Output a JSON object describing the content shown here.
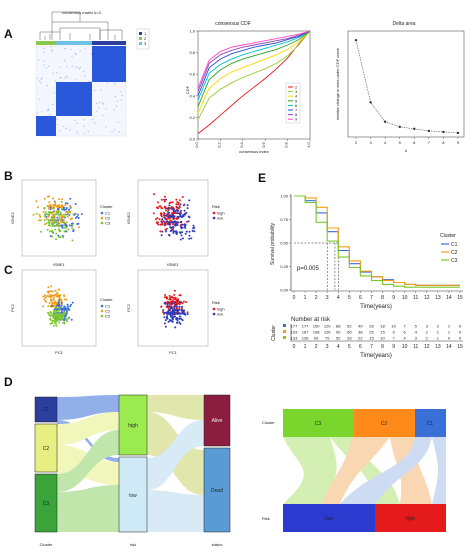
{
  "panels": {
    "a": "A",
    "b": "B",
    "c": "C",
    "d": "D",
    "e": "E"
  },
  "heatmap": {
    "title": "consensus matrix k=3",
    "legend": [
      "1",
      "2",
      "3"
    ],
    "colors": {
      "1": "#2c3e9e",
      "2": "#8ac74a",
      "3": "#6ec1e4",
      "block": "#1f4fd8"
    }
  },
  "cdf": {
    "title": "consensus CDF",
    "xlabel": "consensus index",
    "ylabel": "CDF",
    "x_ticks": [
      "0.0",
      "0.2",
      "0.4",
      "0.6",
      "0.8",
      "1.0"
    ],
    "y_ticks": [
      "0.0",
      "0.2",
      "0.4",
      "0.6",
      "0.8",
      "1.0"
    ],
    "legend": [
      "2",
      "3",
      "4",
      "5",
      "6",
      "7",
      "8",
      "9"
    ],
    "colors": [
      "#e41a1c",
      "#9acd32",
      "#ffd700",
      "#2ca02c",
      "#00bcd4",
      "#1f4fd8",
      "#8e44ad",
      "#ff44cc"
    ]
  },
  "delta": {
    "title": "Delta area",
    "xlabel": "k",
    "ylabel": "relative change in area under CDF curve",
    "x_ticks": [
      "2",
      "3",
      "4",
      "5",
      "6",
      "7",
      "8",
      "9"
    ],
    "y_ticks": [
      "0.0",
      "0.2",
      "0.4",
      "0.6",
      "0.8",
      "1.0"
    ]
  },
  "scatter_b1": {
    "xlabel": "tSNE1",
    "ylabel": "tSNE2",
    "legend_title": "Cluster",
    "legend": [
      "C1",
      "C2",
      "C3"
    ]
  },
  "scatter_b2": {
    "xlabel": "tSNE1",
    "ylabel": "tSNE2",
    "legend_title": "Risk",
    "legend": [
      "high",
      "low"
    ]
  },
  "scatter_c1": {
    "xlabel": "PC1",
    "ylabel": "PC2",
    "legend_title": "Cluster",
    "legend": [
      "C1",
      "C2",
      "C3"
    ]
  },
  "scatter_c2": {
    "xlabel": "PC1",
    "ylabel": "PC2",
    "legend_title": "Risk",
    "legend": [
      "high",
      "low"
    ]
  },
  "colors": {
    "c1": "#3b6fd8",
    "c2": "#f39c12",
    "c3": "#7cc82b",
    "high": "#e31a1c",
    "low": "#2b3bbd"
  },
  "km": {
    "legend_title": "Cluster",
    "legend": [
      "C1",
      "C2",
      "C3"
    ],
    "ylabel": "Survival probability",
    "xlabel": "Time(years)",
    "pvalue": "p=0.005",
    "x_ticks": [
      "0",
      "1",
      "2",
      "3",
      "4",
      "5",
      "6",
      "7",
      "8",
      "9",
      "10",
      "11",
      "12",
      "13",
      "14",
      "15"
    ],
    "y_ticks": [
      "0.00",
      "0.25",
      "0.50",
      "0.75",
      "1.00"
    ],
    "risk_title": "Number at risk",
    "risk_ylabel": "Cluster",
    "risk_rows": [
      [
        "177",
        "177",
        "150",
        "120",
        "88",
        "62",
        "40",
        "28",
        "18",
        "10",
        "7",
        "5",
        "3",
        "2",
        "1",
        "0"
      ],
      [
        "193",
        "187",
        "158",
        "126",
        "90",
        "60",
        "38",
        "25",
        "15",
        "9",
        "6",
        "4",
        "2",
        "1",
        "1",
        "0"
      ],
      [
        "133",
        "126",
        "99",
        "75",
        "52",
        "33",
        "22",
        "15",
        "10",
        "7",
        "4",
        "3",
        "2",
        "1",
        "0",
        "0"
      ]
    ]
  },
  "sankey1": {
    "axis_labels": [
      "Cluster",
      "risk",
      "status"
    ],
    "nodes": [
      "C1",
      "C2",
      "C3",
      "high",
      "low",
      "Alive",
      "Dead"
    ]
  },
  "sankey2": {
    "axis_labels": [
      "Cluster",
      "Risk"
    ],
    "nodes": [
      "C3",
      "C2",
      "C1",
      "low",
      "high"
    ]
  },
  "chart_data": [
    {
      "type": "heatmap",
      "title": "consensus matrix k=3",
      "clusters": [
        "1",
        "2",
        "3"
      ]
    },
    {
      "type": "line",
      "title": "consensus CDF",
      "xlabel": "consensus index",
      "ylabel": "CDF",
      "xlim": [
        0,
        1
      ],
      "ylim": [
        0,
        1
      ],
      "x": [
        0,
        0.1,
        0.2,
        0.3,
        0.4,
        0.5,
        0.6,
        0.7,
        0.8,
        0.9,
        1.0
      ],
      "series": [
        {
          "name": "2",
          "values": [
            0.05,
            0.13,
            0.22,
            0.31,
            0.4,
            0.48,
            0.56,
            0.65,
            0.75,
            0.88,
            1.0
          ]
        },
        {
          "name": "3",
          "values": [
            0.18,
            0.38,
            0.46,
            0.52,
            0.57,
            0.61,
            0.65,
            0.7,
            0.77,
            0.87,
            1.0
          ]
        },
        {
          "name": "4",
          "values": [
            0.24,
            0.47,
            0.56,
            0.62,
            0.66,
            0.7,
            0.74,
            0.78,
            0.83,
            0.9,
            1.0
          ]
        },
        {
          "name": "5",
          "values": [
            0.3,
            0.55,
            0.64,
            0.7,
            0.74,
            0.77,
            0.8,
            0.83,
            0.87,
            0.92,
            1.0
          ]
        },
        {
          "name": "6",
          "values": [
            0.36,
            0.61,
            0.69,
            0.74,
            0.78,
            0.81,
            0.84,
            0.87,
            0.9,
            0.94,
            1.0
          ]
        },
        {
          "name": "7",
          "values": [
            0.4,
            0.66,
            0.74,
            0.79,
            0.82,
            0.85,
            0.87,
            0.89,
            0.92,
            0.95,
            1.0
          ]
        },
        {
          "name": "8",
          "values": [
            0.44,
            0.7,
            0.78,
            0.82,
            0.85,
            0.87,
            0.89,
            0.91,
            0.93,
            0.96,
            1.0
          ]
        },
        {
          "name": "9",
          "values": [
            0.47,
            0.73,
            0.81,
            0.85,
            0.87,
            0.89,
            0.91,
            0.93,
            0.95,
            0.97,
            1.0
          ]
        }
      ]
    },
    {
      "type": "line",
      "title": "Delta area",
      "xlabel": "k",
      "ylabel": "relative change in area under CDF curve",
      "x": [
        2,
        3,
        4,
        5,
        6,
        7,
        8,
        9
      ],
      "values": [
        0.93,
        0.32,
        0.13,
        0.08,
        0.06,
        0.04,
        0.03,
        0.02
      ],
      "ylim": [
        0,
        1
      ]
    },
    {
      "type": "line",
      "title": "",
      "xlabel": "Time(years)",
      "ylabel": "Survival probability",
      "xlim": [
        0,
        15
      ],
      "ylim": [
        0,
        1
      ],
      "series": [
        {
          "name": "C1",
          "x": [
            0,
            1,
            2,
            3,
            4,
            5,
            6,
            7,
            8,
            9,
            10,
            11,
            12,
            13,
            14,
            15
          ],
          "values": [
            1.0,
            0.95,
            0.82,
            0.62,
            0.42,
            0.28,
            0.19,
            0.14,
            0.11,
            0.08,
            0.06,
            0.05,
            0.05,
            0.05,
            0.05,
            0.05
          ]
        },
        {
          "name": "C2",
          "x": [
            0,
            1,
            2,
            3,
            4,
            5,
            6,
            7,
            8,
            9,
            10,
            11,
            12,
            13,
            14,
            15
          ],
          "values": [
            1.0,
            0.98,
            0.88,
            0.66,
            0.46,
            0.31,
            0.2,
            0.14,
            0.1,
            0.08,
            0.06,
            0.05,
            0.05,
            0.05,
            0.05,
            0.05
          ]
        },
        {
          "name": "C3",
          "x": [
            0,
            1,
            2,
            3,
            4,
            5,
            6,
            7,
            8,
            9,
            10,
            11,
            12,
            13,
            14,
            15
          ],
          "values": [
            1.0,
            0.93,
            0.72,
            0.52,
            0.35,
            0.24,
            0.15,
            0.1,
            0.06,
            0.04,
            0.03,
            0.03,
            0.03,
            0.03,
            0.03,
            0.03
          ]
        }
      ],
      "median_survival": {
        "C3": 3,
        "C1": 3.7,
        "C2": 4
      }
    },
    {
      "type": "sankey",
      "axes": [
        "Cluster",
        "risk",
        "status"
      ],
      "nodes": {
        "Cluster": [
          "C1",
          "C2",
          "C3"
        ],
        "risk": [
          "high",
          "low"
        ],
        "status": [
          "Alive",
          "Dead"
        ]
      }
    },
    {
      "type": "sankey",
      "axes": [
        "Cluster",
        "Risk"
      ],
      "nodes": {
        "Cluster": [
          "C3",
          "C2",
          "C1"
        ],
        "Risk": [
          "low",
          "high"
        ]
      }
    }
  ]
}
